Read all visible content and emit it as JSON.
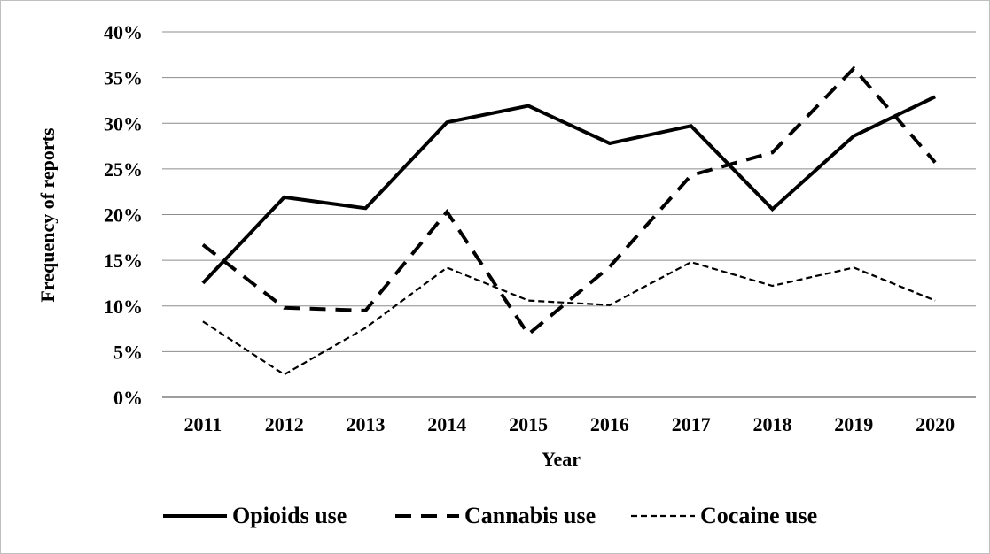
{
  "chart_data": {
    "type": "line",
    "title": "",
    "xlabel": "Year",
    "ylabel": "Frequency of reports",
    "categories": [
      "2011",
      "2012",
      "2013",
      "2014",
      "2015",
      "2016",
      "2017",
      "2018",
      "2019",
      "2020"
    ],
    "y_tick_labels": [
      "0%",
      "5%",
      "10%",
      "15%",
      "20%",
      "25%",
      "30%",
      "35%",
      "40%"
    ],
    "ylim": [
      0,
      40
    ],
    "y_unit": "percent",
    "grid": "horizontal",
    "legend_position": "bottom",
    "series": [
      {
        "name": "Opioids use",
        "style": "solid",
        "color": "#000000",
        "values": [
          12.5,
          21.9,
          20.7,
          30.1,
          31.9,
          27.8,
          29.7,
          20.6,
          28.6,
          32.9
        ]
      },
      {
        "name": "Cannabis use",
        "style": "dashed",
        "color": "#000000",
        "values": [
          16.7,
          9.8,
          9.5,
          20.3,
          6.9,
          14.3,
          24.3,
          26.8,
          36.0,
          25.7
        ]
      },
      {
        "name": "Cocaine use",
        "style": "dotted",
        "color": "#000000",
        "values": [
          8.3,
          2.5,
          7.6,
          14.2,
          10.6,
          10.1,
          14.8,
          12.2,
          14.2,
          10.6
        ]
      }
    ]
  }
}
